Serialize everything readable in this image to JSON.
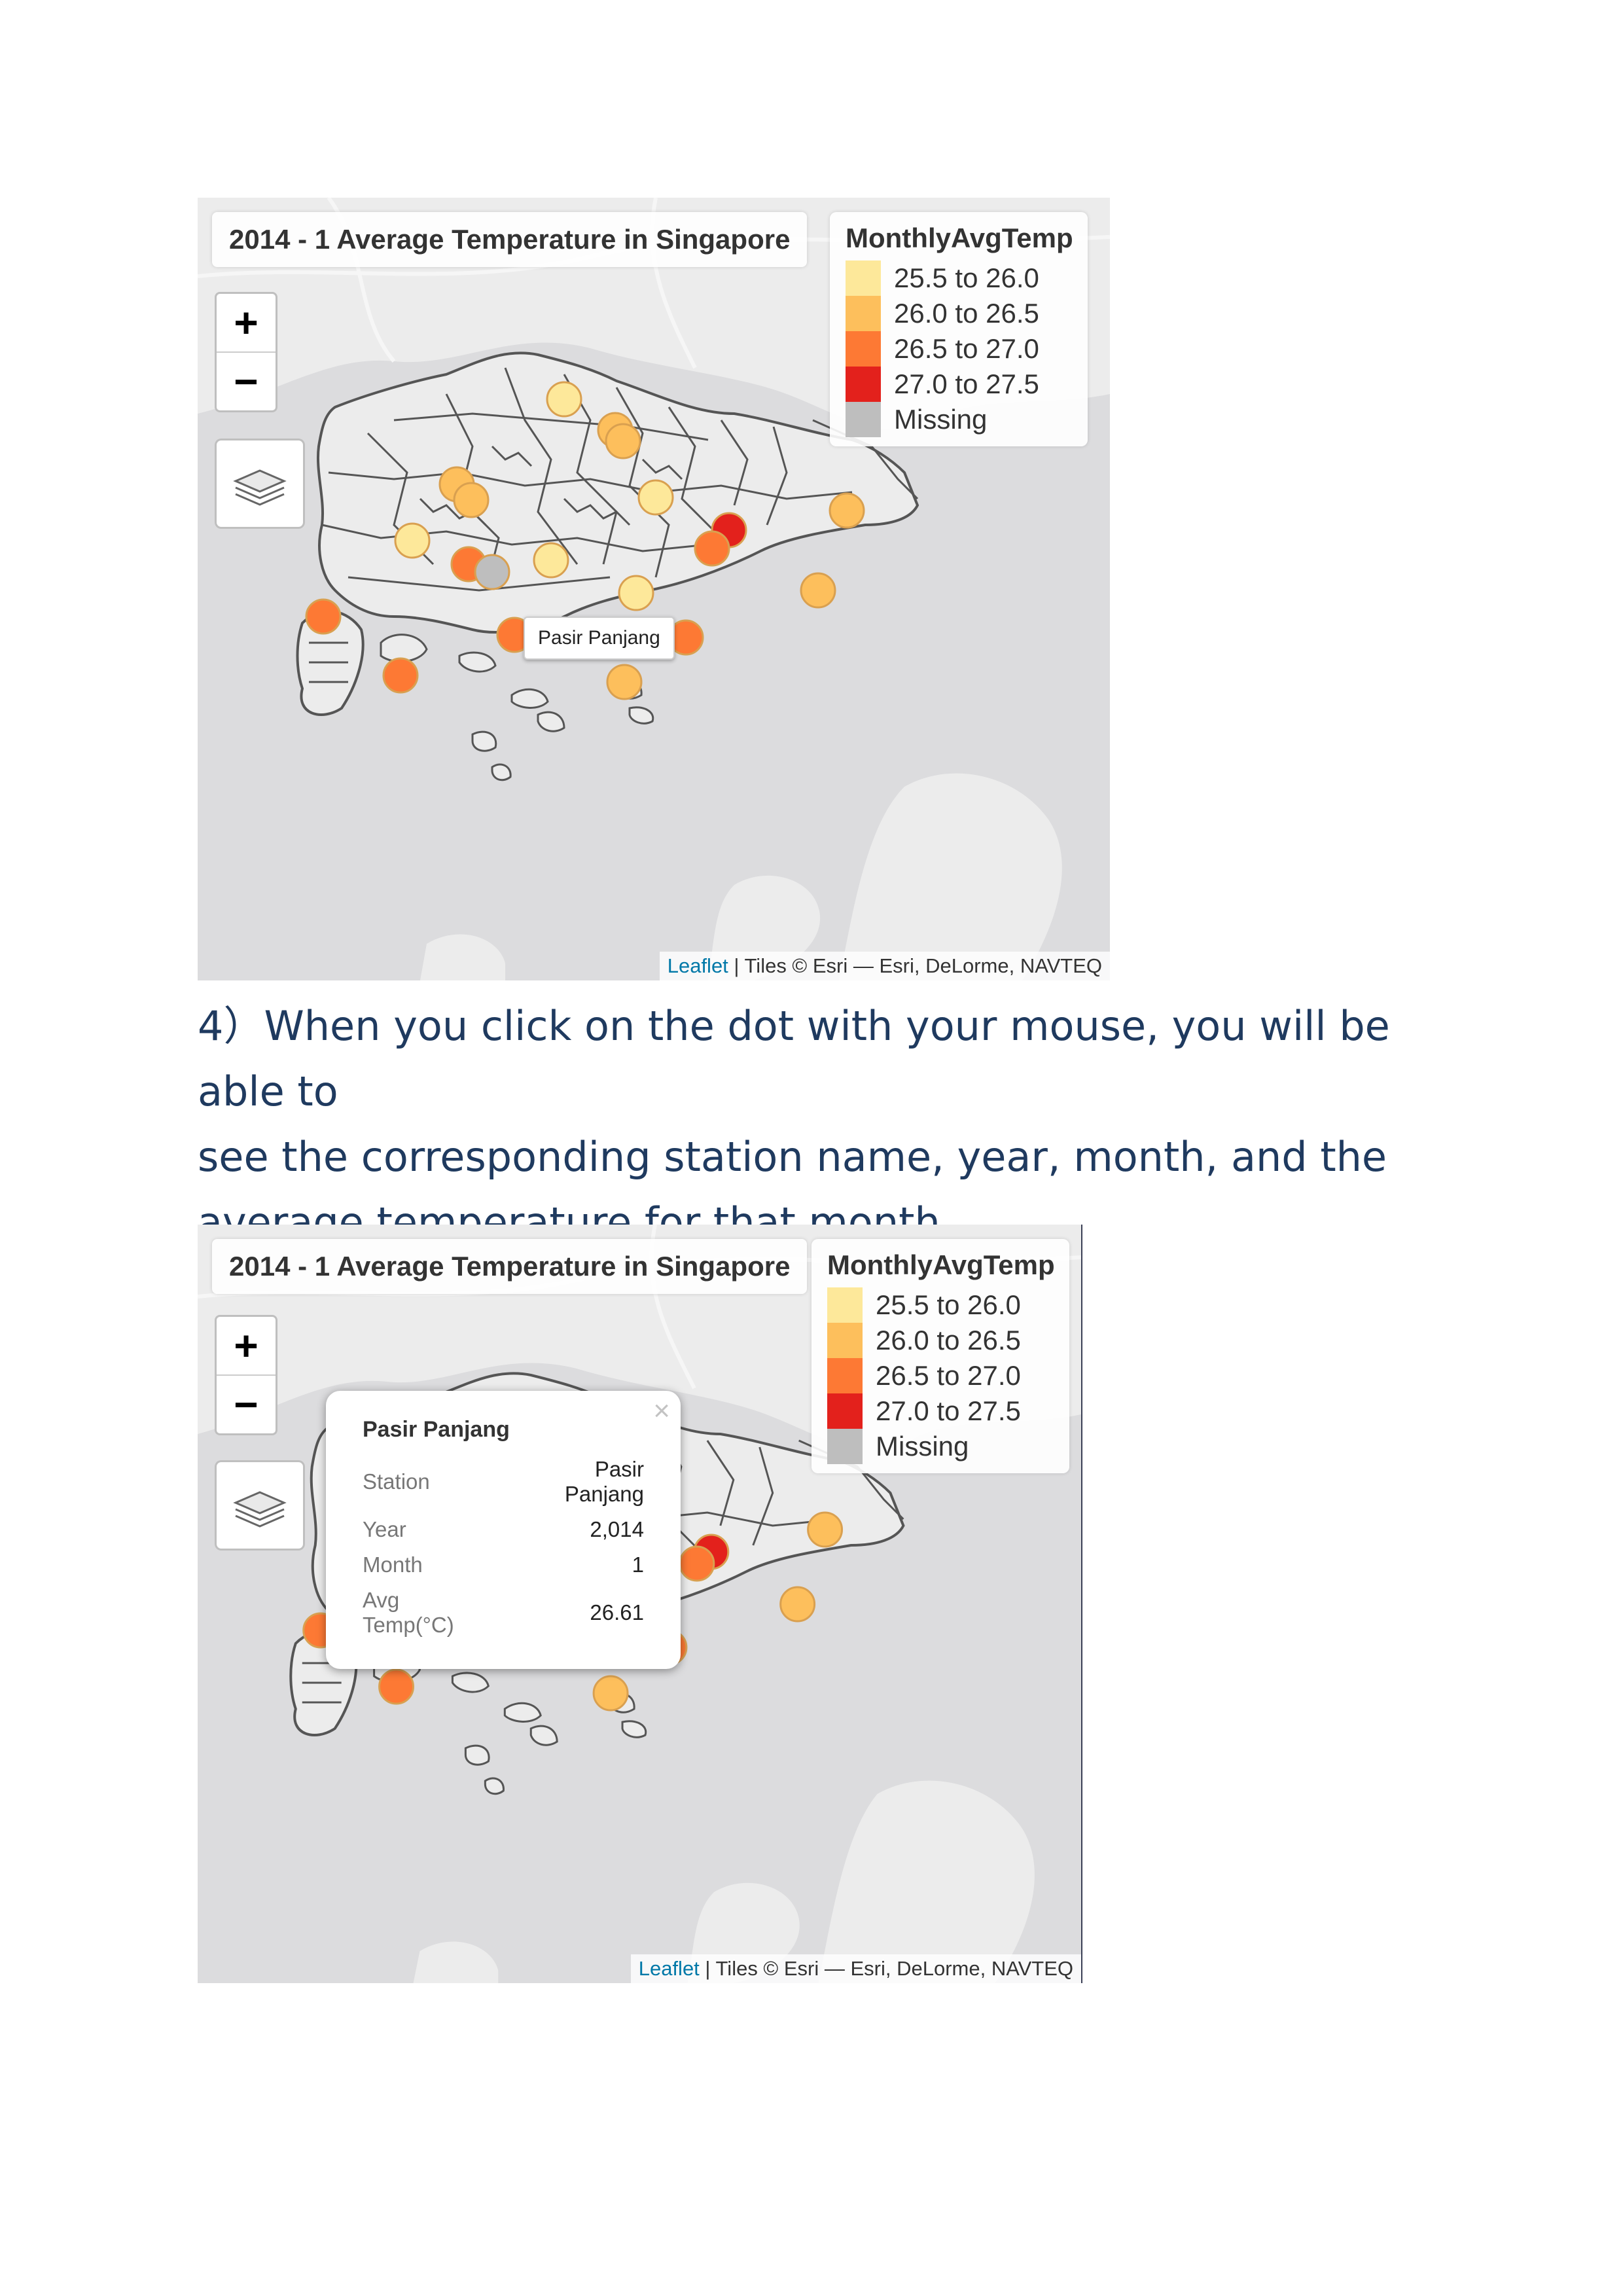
{
  "map1": {
    "title": "2014 - 1 Average Temperature in Singapore",
    "zoom_in": "+",
    "zoom_out": "−",
    "tooltip": "Pasir Panjang"
  },
  "map2": {
    "title": "2014 - 1 Average Temperature in Singapore",
    "zoom_in": "+",
    "zoom_out": "−",
    "popup": {
      "close": "×",
      "title": "Pasir Panjang",
      "rows": [
        {
          "key": "Station",
          "value": "Pasir Panjang"
        },
        {
          "key": "Year",
          "value": "2,014"
        },
        {
          "key": "Month",
          "value": "1"
        },
        {
          "key": "Avg Temp(°C)",
          "value": "26.61"
        }
      ]
    }
  },
  "legend": {
    "title": "MonthlyAvgTemp",
    "items": [
      {
        "label": "25.5 to 26.0",
        "color": "#fde89a"
      },
      {
        "label": "26.0 to 26.5",
        "color": "#fdbf5c"
      },
      {
        "label": "26.5 to 27.0",
        "color": "#fd7934"
      },
      {
        "label": "27.0 to 27.5",
        "color": "#e3211c"
      },
      {
        "label": "Missing",
        "color": "#bebebe"
      }
    ]
  },
  "attribution": {
    "leaflet": "Leaflet",
    "rest": " | Tiles © Esri — Esri, DeLorme, NAVTEQ"
  },
  "paragraph": {
    "line1": "4）When you click on the dot with your mouse, you will be able to",
    "line2": "see the corresponding station name, year, month, and the",
    "line3": "average temperature for that month."
  },
  "colors": {
    "water": "#dcdcde",
    "land": "#ececec",
    "text_blue": "#1f3a5f"
  }
}
